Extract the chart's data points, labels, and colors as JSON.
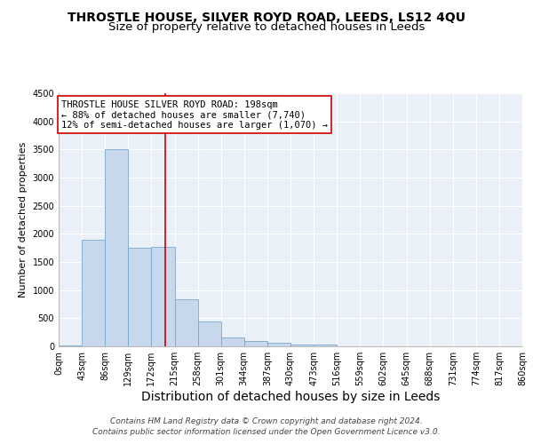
{
  "title1": "THROSTLE HOUSE, SILVER ROYD ROAD, LEEDS, LS12 4QU",
  "title2": "Size of property relative to detached houses in Leeds",
  "xlabel": "Distribution of detached houses by size in Leeds",
  "ylabel": "Number of detached properties",
  "footer1": "Contains HM Land Registry data © Crown copyright and database right 2024.",
  "footer2": "Contains public sector information licensed under the Open Government Licence v3.0.",
  "bin_edges": [
    0,
    43,
    86,
    129,
    172,
    215,
    258,
    301,
    344,
    387,
    430,
    473,
    516,
    559,
    602,
    645,
    688,
    731,
    774,
    817,
    860
  ],
  "bar_heights": [
    20,
    1900,
    3500,
    1750,
    1775,
    840,
    450,
    155,
    90,
    60,
    35,
    30,
    0,
    0,
    0,
    0,
    0,
    0,
    0,
    0
  ],
  "bar_color": "#c8d8ec",
  "bar_edgecolor": "#7aa8cc",
  "property_size": 198,
  "red_line_color": "#cc0000",
  "annotation_text": "THROSTLE HOUSE SILVER ROYD ROAD: 198sqm\n← 88% of detached houses are smaller (7,740)\n12% of semi-detached houses are larger (1,070) →",
  "annotation_box_edgecolor": "#cc0000",
  "annotation_box_facecolor": "#ffffff",
  "ylim": [
    0,
    4500
  ],
  "background_color": "#eaf0f8",
  "grid_color": "#ffffff",
  "title1_fontsize": 10,
  "title2_fontsize": 9.5,
  "xlabel_fontsize": 10,
  "ylabel_fontsize": 8,
  "tick_fontsize": 7,
  "annotation_fontsize": 7.5,
  "footer_fontsize": 6.5
}
